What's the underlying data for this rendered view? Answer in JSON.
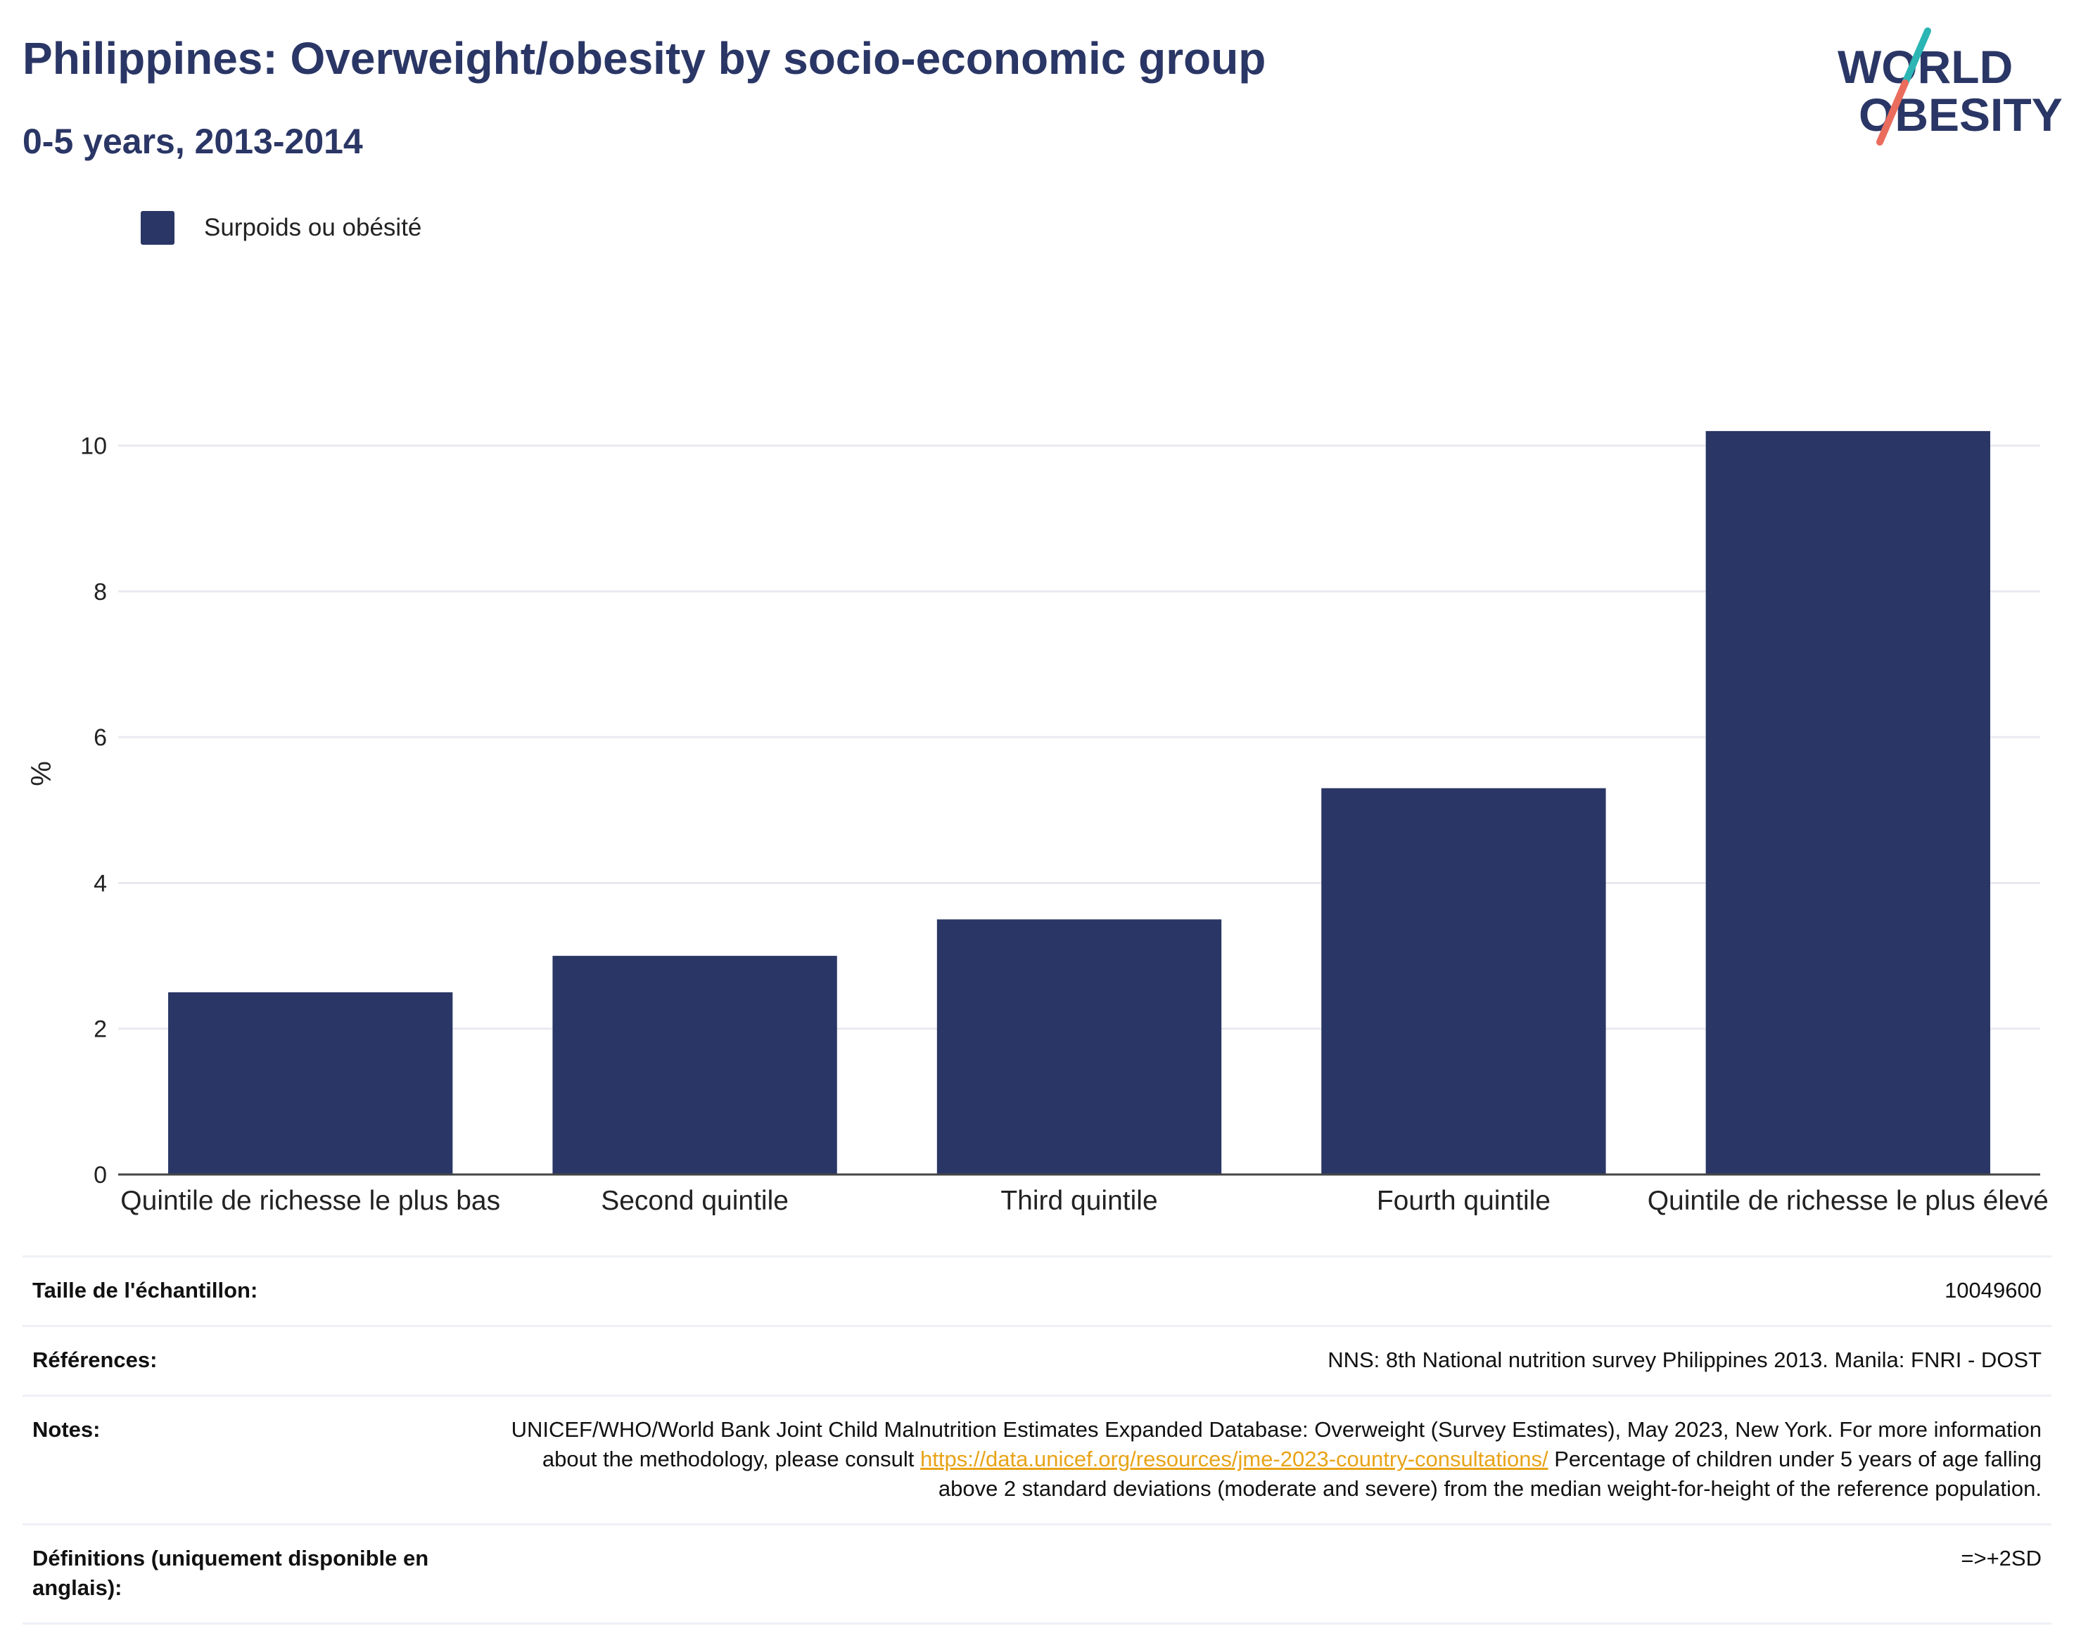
{
  "header": {
    "title": "Philippines: Overweight/obesity by socio-economic group",
    "subtitle": "0-5 years, 2013-2014"
  },
  "logo": {
    "line1": "WORLD",
    "line2": "OBESITY",
    "colors": {
      "text": "#2a3665",
      "slash_top": "#2bb5b4",
      "slash_bottom": "#ea6c5c"
    }
  },
  "legend": {
    "label": "Surpoids ou obésité",
    "color": "#2a3665"
  },
  "chart_data": {
    "type": "bar",
    "title": "Philippines: Overweight/obesity by socio-economic group",
    "subtitle": "0-5 years, 2013-2014",
    "xlabel": "",
    "ylabel": "%",
    "categories": [
      "Quintile de richesse le plus bas",
      "Second quintile",
      "Third quintile",
      "Fourth quintile",
      "Quintile de richesse le plus élevé"
    ],
    "series": [
      {
        "name": "Surpoids ou obésité",
        "values": [
          2.5,
          3.0,
          3.5,
          5.3,
          10.2
        ],
        "color": "#2a3665"
      }
    ],
    "ylim": [
      0,
      11
    ],
    "yticks": [
      0,
      2,
      4,
      6,
      8,
      10
    ],
    "grid": true,
    "legend_position": "top-left"
  },
  "info": {
    "sample": {
      "label": "Taille de l'échantillon:",
      "value": "10049600"
    },
    "references": {
      "label": "Références:",
      "value": "NNS: 8th National nutrition survey Philippines 2013. Manila: FNRI - DOST"
    },
    "notes": {
      "label": "Notes:",
      "line_before_link": "UNICEF/WHO/World Bank Joint Child Malnutrition Estimates Expanded Database: Overweight (Survey Estimates), May 2023, New York. For more information about the methodology, please consult",
      "link": "https://data.unicef.org/resources/jme-2023-country-consultations/",
      "line_after_link": "Percentage of children under 5 years of age falling above 2 standard deviations (moderate and severe) from the median weight-for-height of the reference population."
    },
    "definitions": {
      "label": "Définitions (uniquement disponible en anglais):",
      "value": "=>+2SD"
    }
  }
}
